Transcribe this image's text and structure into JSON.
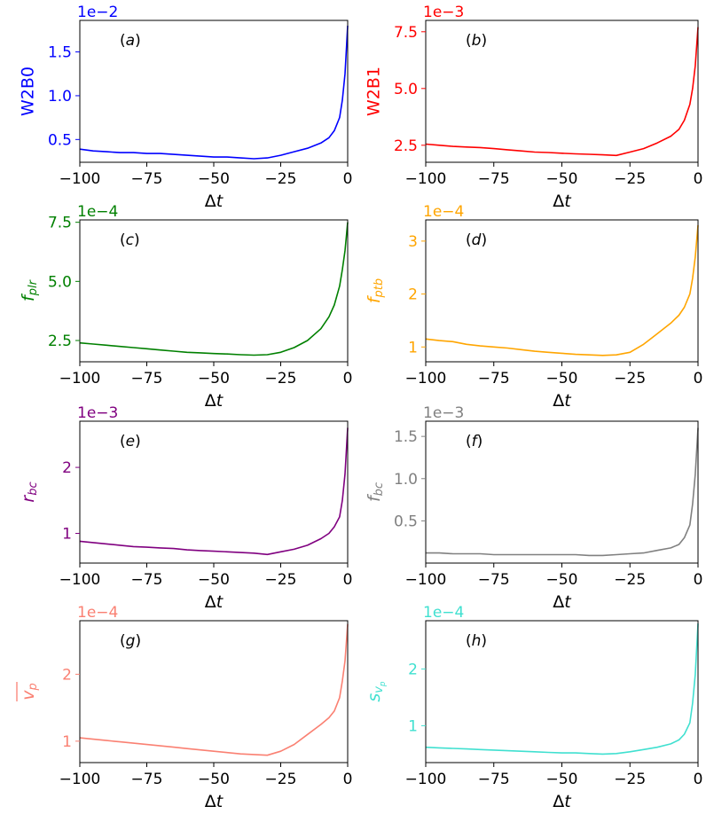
{
  "chart_data": [
    {
      "panel_label": "(a)",
      "type": "line",
      "color": "#0000ff",
      "ylabel": "W2B0",
      "exponent": "1e−2",
      "xlabel": "Δt",
      "xlim": [
        -100,
        0
      ],
      "ylim": [
        0.24,
        1.86
      ],
      "xticks": [
        -100,
        -75,
        -50,
        -25,
        0
      ],
      "xtick_labels": [
        "−100",
        "−75",
        "−50",
        "−25",
        "0"
      ],
      "yticks": [
        0.5,
        1.0,
        1.5
      ],
      "ytick_labels": [
        "0.5",
        "1.0",
        "1.5"
      ],
      "series": [
        {
          "x": [
            -100,
            -95,
            -90,
            -85,
            -80,
            -75,
            -70,
            -65,
            -60,
            -55,
            -50,
            -45,
            -40,
            -35,
            -30,
            -25,
            -20,
            -15,
            -10,
            -7,
            -5,
            -3,
            -2,
            -1,
            0
          ],
          "values": [
            0.39,
            0.37,
            0.36,
            0.35,
            0.35,
            0.34,
            0.34,
            0.33,
            0.32,
            0.31,
            0.3,
            0.3,
            0.29,
            0.28,
            0.29,
            0.32,
            0.36,
            0.4,
            0.46,
            0.52,
            0.6,
            0.75,
            0.95,
            1.25,
            1.8
          ]
        }
      ]
    },
    {
      "panel_label": "(b)",
      "type": "line",
      "color": "#ff0000",
      "ylabel": "W2B1",
      "exponent": "1e−3",
      "xlabel": "Δt",
      "xlim": [
        -100,
        0
      ],
      "ylim": [
        1.75,
        8.0
      ],
      "xticks": [
        -100,
        -75,
        -50,
        -25,
        0
      ],
      "xtick_labels": [
        "−100",
        "−75",
        "−50",
        "−25",
        "0"
      ],
      "yticks": [
        2.5,
        5.0,
        7.5
      ],
      "ytick_labels": [
        "2.5",
        "5.0",
        "7.5"
      ],
      "series": [
        {
          "x": [
            -100,
            -95,
            -90,
            -85,
            -80,
            -75,
            -70,
            -65,
            -60,
            -55,
            -50,
            -45,
            -40,
            -35,
            -30,
            -25,
            -20,
            -15,
            -10,
            -7,
            -5,
            -3,
            -2,
            -1,
            0
          ],
          "values": [
            2.55,
            2.5,
            2.45,
            2.42,
            2.4,
            2.35,
            2.3,
            2.25,
            2.2,
            2.18,
            2.15,
            2.12,
            2.1,
            2.08,
            2.05,
            2.2,
            2.35,
            2.6,
            2.9,
            3.2,
            3.6,
            4.3,
            5.0,
            6.0,
            7.7
          ]
        }
      ]
    },
    {
      "panel_label": "(c)",
      "type": "line",
      "color": "#008000",
      "ylabel": "f_plr",
      "exponent": "1e−4",
      "xlabel": "Δt",
      "xlim": [
        -100,
        0
      ],
      "ylim": [
        1.6,
        7.6
      ],
      "xticks": [
        -100,
        -75,
        -50,
        -25,
        0
      ],
      "xtick_labels": [
        "−100",
        "−75",
        "−50",
        "−25",
        "0"
      ],
      "yticks": [
        2.5,
        5.0,
        7.5
      ],
      "ytick_labels": [
        "2.5",
        "5.0",
        "7.5"
      ],
      "series": [
        {
          "x": [
            -100,
            -95,
            -90,
            -85,
            -80,
            -75,
            -70,
            -65,
            -60,
            -55,
            -50,
            -45,
            -40,
            -35,
            -30,
            -25,
            -20,
            -15,
            -10,
            -7,
            -5,
            -3,
            -2,
            -1,
            0
          ],
          "values": [
            2.4,
            2.35,
            2.3,
            2.25,
            2.2,
            2.15,
            2.1,
            2.05,
            2.0,
            1.98,
            1.95,
            1.93,
            1.9,
            1.88,
            1.9,
            2.0,
            2.2,
            2.5,
            3.0,
            3.5,
            4.0,
            4.8,
            5.5,
            6.3,
            7.5
          ]
        }
      ]
    },
    {
      "panel_label": "(d)",
      "type": "line",
      "color": "#ffa500",
      "ylabel": "f_ptb",
      "exponent": "1e−4",
      "xlabel": "Δt",
      "xlim": [
        -100,
        0
      ],
      "ylim": [
        0.72,
        3.4
      ],
      "xticks": [
        -100,
        -75,
        -50,
        -25,
        0
      ],
      "xtick_labels": [
        "−100",
        "−75",
        "−50",
        "−25",
        "0"
      ],
      "yticks": [
        1,
        2,
        3
      ],
      "ytick_labels": [
        "1",
        "2",
        "3"
      ],
      "series": [
        {
          "x": [
            -100,
            -95,
            -90,
            -85,
            -80,
            -75,
            -70,
            -65,
            -60,
            -55,
            -50,
            -45,
            -40,
            -35,
            -30,
            -25,
            -20,
            -15,
            -10,
            -7,
            -5,
            -3,
            -2,
            -1,
            0
          ],
          "values": [
            1.15,
            1.12,
            1.1,
            1.05,
            1.02,
            1.0,
            0.98,
            0.95,
            0.92,
            0.9,
            0.88,
            0.86,
            0.85,
            0.84,
            0.85,
            0.9,
            1.05,
            1.25,
            1.45,
            1.6,
            1.75,
            2.0,
            2.3,
            2.7,
            3.3
          ]
        }
      ]
    },
    {
      "panel_label": "(e)",
      "type": "line",
      "color": "#800080",
      "ylabel": "r_bc",
      "exponent": "1e−3",
      "xlabel": "Δt",
      "xlim": [
        -100,
        0
      ],
      "ylim": [
        0.55,
        2.7
      ],
      "xticks": [
        -100,
        -75,
        -50,
        -25,
        0
      ],
      "xtick_labels": [
        "−100",
        "−75",
        "−50",
        "−25",
        "0"
      ],
      "yticks": [
        1,
        2
      ],
      "ytick_labels": [
        "1",
        "2"
      ],
      "series": [
        {
          "x": [
            -100,
            -95,
            -90,
            -85,
            -80,
            -75,
            -70,
            -65,
            -60,
            -55,
            -50,
            -45,
            -40,
            -35,
            -30,
            -25,
            -20,
            -15,
            -10,
            -7,
            -5,
            -3,
            -2,
            -1,
            0
          ],
          "values": [
            0.88,
            0.86,
            0.84,
            0.82,
            0.8,
            0.79,
            0.78,
            0.77,
            0.75,
            0.74,
            0.73,
            0.72,
            0.71,
            0.7,
            0.68,
            0.72,
            0.76,
            0.82,
            0.92,
            1.0,
            1.1,
            1.25,
            1.5,
            1.9,
            2.6
          ]
        }
      ]
    },
    {
      "panel_label": "(f)",
      "type": "line",
      "color": "#808080",
      "ylabel": "f_bc",
      "exponent": "1e−3",
      "xlabel": "Δt",
      "xlim": [
        -100,
        0
      ],
      "ylim": [
        0.0,
        1.68
      ],
      "xticks": [
        -100,
        -75,
        -50,
        -25,
        0
      ],
      "xtick_labels": [
        "−100",
        "−75",
        "−50",
        "−25",
        "0"
      ],
      "yticks": [
        0.5,
        1.0,
        1.5
      ],
      "ytick_labels": [
        "0.5",
        "1.0",
        "1.5"
      ],
      "series": [
        {
          "x": [
            -100,
            -95,
            -90,
            -85,
            -80,
            -75,
            -70,
            -65,
            -60,
            -55,
            -50,
            -45,
            -40,
            -35,
            -30,
            -25,
            -20,
            -15,
            -10,
            -7,
            -5,
            -3,
            -2,
            -1,
            0
          ],
          "values": [
            0.12,
            0.12,
            0.11,
            0.11,
            0.11,
            0.1,
            0.1,
            0.1,
            0.1,
            0.1,
            0.1,
            0.1,
            0.09,
            0.09,
            0.1,
            0.11,
            0.12,
            0.15,
            0.18,
            0.22,
            0.3,
            0.45,
            0.7,
            1.05,
            1.6
          ]
        }
      ]
    },
    {
      "panel_label": "(g)",
      "type": "line",
      "color": "#fa8072",
      "ylabel": "v_p (mean)",
      "exponent": "1e−4",
      "xlabel": "Δt",
      "xlim": [
        -100,
        0
      ],
      "ylim": [
        0.68,
        2.8
      ],
      "xticks": [
        -100,
        -75,
        -50,
        -25,
        0
      ],
      "xtick_labels": [
        "−100",
        "−75",
        "−50",
        "−25",
        "0"
      ],
      "yticks": [
        1,
        2
      ],
      "ytick_labels": [
        "1",
        "2"
      ],
      "series": [
        {
          "x": [
            -100,
            -95,
            -90,
            -85,
            -80,
            -75,
            -70,
            -65,
            -60,
            -55,
            -50,
            -45,
            -40,
            -35,
            -30,
            -25,
            -20,
            -15,
            -10,
            -7,
            -5,
            -3,
            -2,
            -1,
            0
          ],
          "values": [
            1.05,
            1.03,
            1.01,
            0.99,
            0.97,
            0.95,
            0.93,
            0.91,
            0.89,
            0.87,
            0.85,
            0.83,
            0.81,
            0.8,
            0.79,
            0.85,
            0.95,
            1.1,
            1.25,
            1.35,
            1.45,
            1.65,
            1.9,
            2.2,
            2.75
          ]
        }
      ]
    },
    {
      "panel_label": "(h)",
      "type": "line",
      "color": "#40e0d0",
      "ylabel": "s_vp",
      "exponent": "1e−4",
      "xlabel": "Δt",
      "xlim": [
        -100,
        0
      ],
      "ylim": [
        0.35,
        2.85
      ],
      "xticks": [
        -100,
        -75,
        -50,
        -25,
        0
      ],
      "xtick_labels": [
        "−100",
        "−75",
        "−50",
        "−25",
        "0"
      ],
      "yticks": [
        1,
        2
      ],
      "ytick_labels": [
        "1",
        "2"
      ],
      "series": [
        {
          "x": [
            -100,
            -95,
            -90,
            -85,
            -80,
            -75,
            -70,
            -65,
            -60,
            -55,
            -50,
            -45,
            -40,
            -35,
            -30,
            -25,
            -20,
            -15,
            -10,
            -7,
            -5,
            -3,
            -2,
            -1,
            0
          ],
          "values": [
            0.62,
            0.61,
            0.6,
            0.59,
            0.58,
            0.57,
            0.56,
            0.55,
            0.54,
            0.53,
            0.52,
            0.52,
            0.51,
            0.5,
            0.51,
            0.54,
            0.58,
            0.62,
            0.68,
            0.75,
            0.85,
            1.05,
            1.4,
            1.9,
            2.8
          ]
        }
      ]
    }
  ]
}
